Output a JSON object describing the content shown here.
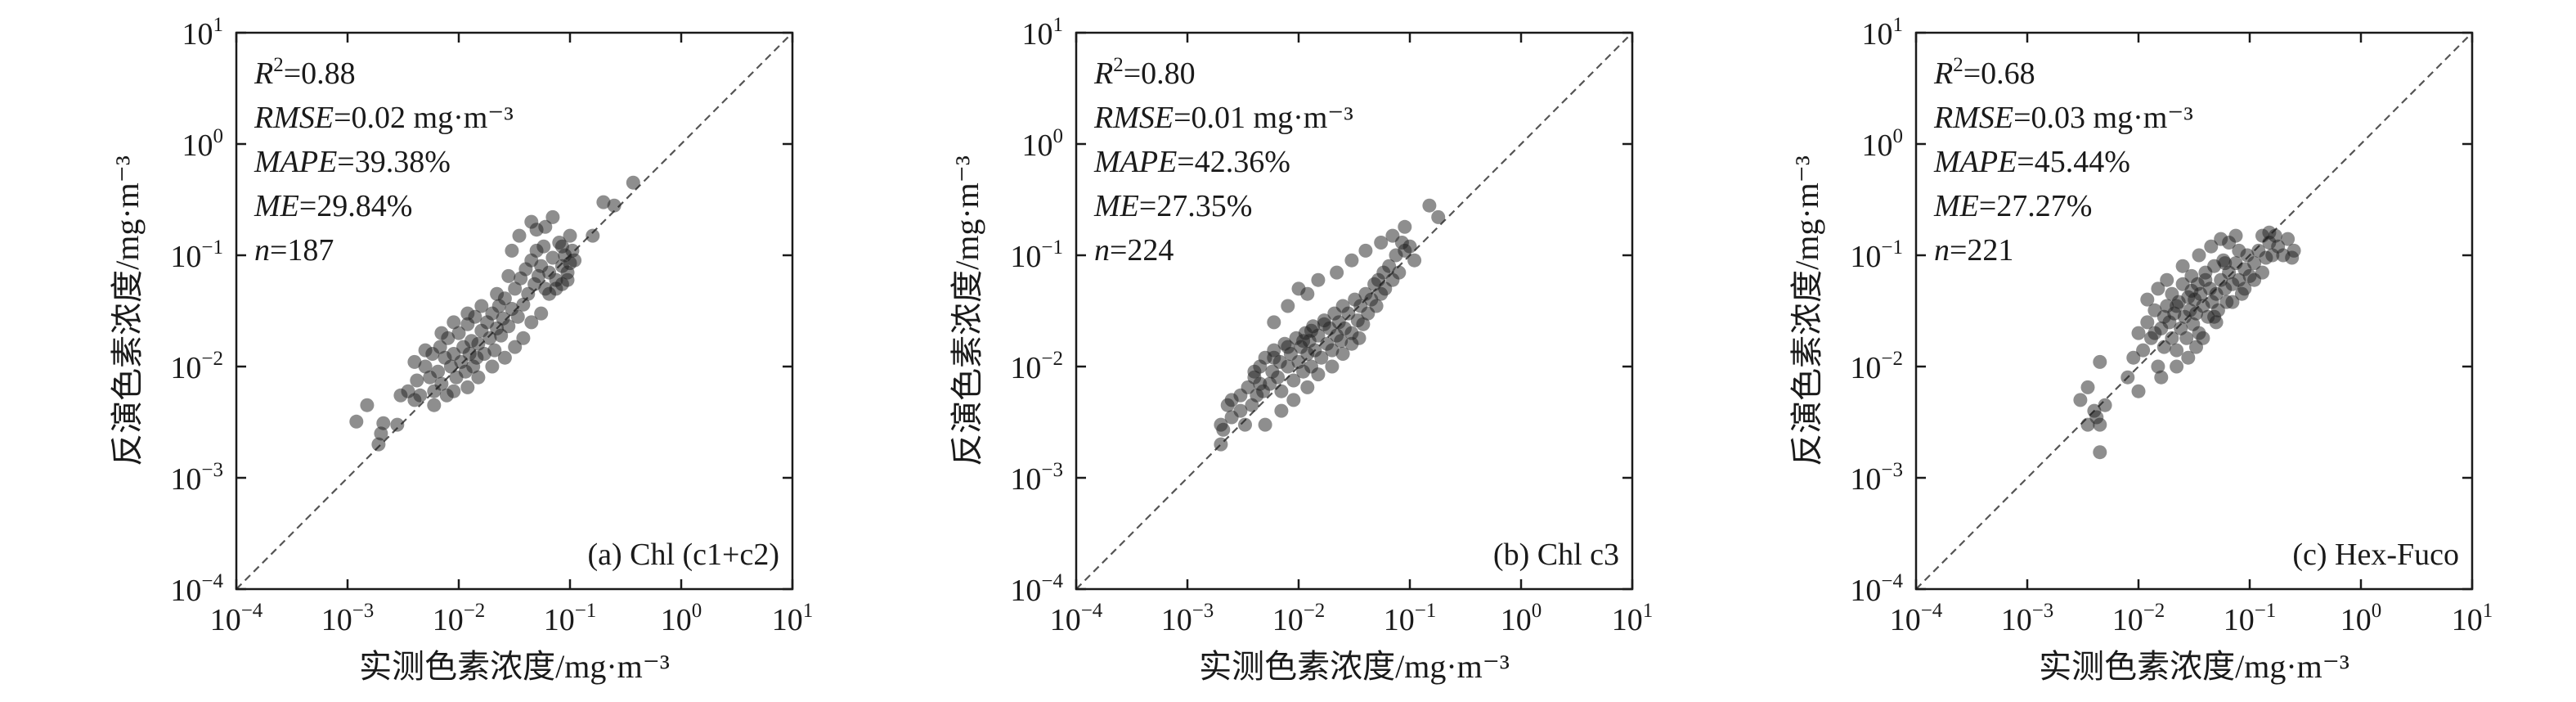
{
  "chart_data": [
    {
      "type": "scatter",
      "panel_label": "(a) Chl (c1+c2)",
      "xlabel": "实测色素浓度/mg·m⁻³",
      "ylabel": "反演色素浓度/mg·m⁻³",
      "x_scale": "log",
      "y_scale": "log",
      "xlim": [
        0.0001,
        10
      ],
      "ylim": [
        0.0001,
        10
      ],
      "tick_labels": [
        "10⁻⁴",
        "10⁻³",
        "10⁻²",
        "10⁻¹",
        "10⁰",
        "10¹"
      ],
      "reference_line": "1:1 dashed",
      "stats": {
        "r2_label": "R²",
        "r2": "=0.88",
        "rmse_label": "RMSE",
        "rmse": "=0.02 mg·m⁻³",
        "mape_label": "MAPE",
        "mape": "=39.38%",
        "me_label": "ME",
        "me": "=29.84%",
        "n_label": "n",
        "n": "=187"
      },
      "points": [
        [
          0.0019,
          0.002
        ],
        [
          0.002,
          0.0025
        ],
        [
          0.0021,
          0.0031
        ],
        [
          0.0015,
          0.0045
        ],
        [
          0.0012,
          0.0032
        ],
        [
          0.0028,
          0.003
        ],
        [
          0.003,
          0.0055
        ],
        [
          0.0035,
          0.006
        ],
        [
          0.004,
          0.005
        ],
        [
          0.0042,
          0.0075
        ],
        [
          0.0045,
          0.0055
        ],
        [
          0.005,
          0.01
        ],
        [
          0.0055,
          0.008
        ],
        [
          0.0058,
          0.013
        ],
        [
          0.006,
          0.006
        ],
        [
          0.0065,
          0.009
        ],
        [
          0.0068,
          0.015
        ],
        [
          0.007,
          0.007
        ],
        [
          0.0075,
          0.012
        ],
        [
          0.0078,
          0.0055
        ],
        [
          0.008,
          0.018
        ],
        [
          0.0085,
          0.01
        ],
        [
          0.009,
          0.013
        ],
        [
          0.0095,
          0.008
        ],
        [
          0.01,
          0.02
        ],
        [
          0.0105,
          0.011
        ],
        [
          0.011,
          0.015
        ],
        [
          0.0115,
          0.009
        ],
        [
          0.012,
          0.024
        ],
        [
          0.0125,
          0.013
        ],
        [
          0.013,
          0.017
        ],
        [
          0.0135,
          0.01
        ],
        [
          0.014,
          0.028
        ],
        [
          0.0145,
          0.012
        ],
        [
          0.015,
          0.016
        ],
        [
          0.016,
          0.021
        ],
        [
          0.017,
          0.013
        ],
        [
          0.018,
          0.025
        ],
        [
          0.019,
          0.018
        ],
        [
          0.02,
          0.03
        ],
        [
          0.021,
          0.014
        ],
        [
          0.022,
          0.022
        ],
        [
          0.023,
          0.035
        ],
        [
          0.024,
          0.019
        ],
        [
          0.025,
          0.027
        ],
        [
          0.026,
          0.041
        ],
        [
          0.028,
          0.023
        ],
        [
          0.03,
          0.033
        ],
        [
          0.032,
          0.05
        ],
        [
          0.034,
          0.028
        ],
        [
          0.036,
          0.062
        ],
        [
          0.038,
          0.036
        ],
        [
          0.04,
          0.075
        ],
        [
          0.042,
          0.045
        ],
        [
          0.045,
          0.09
        ],
        [
          0.048,
          0.055
        ],
        [
          0.05,
          0.11
        ],
        [
          0.052,
          0.065
        ],
        [
          0.055,
          0.08
        ],
        [
          0.058,
          0.12
        ],
        [
          0.06,
          0.05
        ],
        [
          0.065,
          0.07
        ],
        [
          0.07,
          0.095
        ],
        [
          0.075,
          0.06
        ],
        [
          0.08,
          0.13
        ],
        [
          0.085,
          0.08
        ],
        [
          0.09,
          0.1
        ],
        [
          0.095,
          0.07
        ],
        [
          0.1,
          0.15
        ],
        [
          0.105,
          0.11
        ],
        [
          0.11,
          0.09
        ],
        [
          0.038,
          0.018
        ],
        [
          0.032,
          0.015
        ],
        [
          0.026,
          0.012
        ],
        [
          0.02,
          0.01
        ],
        [
          0.015,
          0.008
        ],
        [
          0.012,
          0.0065
        ],
        [
          0.009,
          0.006
        ],
        [
          0.006,
          0.0045
        ],
        [
          0.045,
          0.025
        ],
        [
          0.055,
          0.03
        ],
        [
          0.065,
          0.045
        ],
        [
          0.075,
          0.05
        ],
        [
          0.085,
          0.055
        ],
        [
          0.095,
          0.06
        ],
        [
          0.1,
          0.085
        ],
        [
          0.028,
          0.065
        ],
        [
          0.022,
          0.045
        ],
        [
          0.016,
          0.035
        ],
        [
          0.012,
          0.03
        ],
        [
          0.009,
          0.025
        ],
        [
          0.007,
          0.02
        ],
        [
          0.005,
          0.014
        ],
        [
          0.004,
          0.011
        ],
        [
          0.035,
          0.15
        ],
        [
          0.045,
          0.2
        ],
        [
          0.03,
          0.11
        ],
        [
          0.05,
          0.17
        ],
        [
          0.2,
          0.3
        ],
        [
          0.25,
          0.28
        ],
        [
          0.37,
          0.45
        ],
        [
          0.06,
          0.18
        ],
        [
          0.07,
          0.22
        ],
        [
          0.16,
          0.15
        ],
        [
          0.085,
          0.12
        ]
      ]
    },
    {
      "type": "scatter",
      "panel_label": "(b) Chl c3",
      "xlabel": "实测色素浓度/mg·m⁻³",
      "ylabel": "反演色素浓度/mg·m⁻³",
      "x_scale": "log",
      "y_scale": "log",
      "xlim": [
        0.0001,
        10
      ],
      "ylim": [
        0.0001,
        10
      ],
      "tick_labels": [
        "10⁻⁴",
        "10⁻³",
        "10⁻²",
        "10⁻¹",
        "10⁰",
        "10¹"
      ],
      "reference_line": "1:1 dashed",
      "stats": {
        "r2_label": "R²",
        "r2": "=0.80",
        "rmse_label": "RMSE",
        "rmse": "=0.01 mg·m⁻³",
        "mape_label": "MAPE",
        "mape": "=42.36%",
        "me_label": "ME",
        "me": "=27.35%",
        "n_label": "n",
        "n": "=224"
      },
      "points": [
        [
          0.002,
          0.002
        ],
        [
          0.0021,
          0.0027
        ],
        [
          0.0023,
          0.0045
        ],
        [
          0.0025,
          0.0035
        ],
        [
          0.003,
          0.0055
        ],
        [
          0.0033,
          0.003
        ],
        [
          0.0035,
          0.0065
        ],
        [
          0.0038,
          0.0045
        ],
        [
          0.004,
          0.008
        ],
        [
          0.0042,
          0.0055
        ],
        [
          0.0045,
          0.01
        ],
        [
          0.0048,
          0.006
        ],
        [
          0.005,
          0.012
        ],
        [
          0.0055,
          0.007
        ],
        [
          0.0058,
          0.009
        ],
        [
          0.006,
          0.014
        ],
        [
          0.0065,
          0.008
        ],
        [
          0.0068,
          0.011
        ],
        [
          0.007,
          0.006
        ],
        [
          0.0075,
          0.016
        ],
        [
          0.008,
          0.01
        ],
        [
          0.0085,
          0.013
        ],
        [
          0.009,
          0.0075
        ],
        [
          0.0095,
          0.018
        ],
        [
          0.01,
          0.011
        ],
        [
          0.0105,
          0.015
        ],
        [
          0.011,
          0.009
        ],
        [
          0.0115,
          0.02
        ],
        [
          0.012,
          0.013
        ],
        [
          0.0125,
          0.017
        ],
        [
          0.013,
          0.01
        ],
        [
          0.0135,
          0.023
        ],
        [
          0.014,
          0.014
        ],
        [
          0.015,
          0.019
        ],
        [
          0.016,
          0.012
        ],
        [
          0.017,
          0.026
        ],
        [
          0.018,
          0.016
        ],
        [
          0.019,
          0.022
        ],
        [
          0.02,
          0.014
        ],
        [
          0.021,
          0.03
        ],
        [
          0.022,
          0.019
        ],
        [
          0.023,
          0.025
        ],
        [
          0.024,
          0.017
        ],
        [
          0.025,
          0.035
        ],
        [
          0.026,
          0.022
        ],
        [
          0.028,
          0.03
        ],
        [
          0.03,
          0.02
        ],
        [
          0.032,
          0.04
        ],
        [
          0.034,
          0.026
        ],
        [
          0.036,
          0.035
        ],
        [
          0.038,
          0.024
        ],
        [
          0.04,
          0.045
        ],
        [
          0.042,
          0.03
        ],
        [
          0.045,
          0.04
        ],
        [
          0.048,
          0.055
        ],
        [
          0.05,
          0.035
        ],
        [
          0.052,
          0.06
        ],
        [
          0.055,
          0.045
        ],
        [
          0.058,
          0.07
        ],
        [
          0.06,
          0.05
        ],
        [
          0.065,
          0.08
        ],
        [
          0.07,
          0.06
        ],
        [
          0.075,
          0.1
        ],
        [
          0.08,
          0.07
        ],
        [
          0.085,
          0.13
        ],
        [
          0.09,
          0.11
        ],
        [
          0.1,
          0.12
        ],
        [
          0.11,
          0.09
        ],
        [
          0.01,
          0.05
        ],
        [
          0.008,
          0.035
        ],
        [
          0.006,
          0.025
        ],
        [
          0.015,
          0.06
        ],
        [
          0.012,
          0.045
        ],
        [
          0.022,
          0.07
        ],
        [
          0.03,
          0.09
        ],
        [
          0.04,
          0.11
        ],
        [
          0.055,
          0.13
        ],
        [
          0.07,
          0.15
        ],
        [
          0.09,
          0.18
        ],
        [
          0.15,
          0.28
        ],
        [
          0.18,
          0.22
        ],
        [
          0.005,
          0.003
        ],
        [
          0.007,
          0.004
        ],
        [
          0.009,
          0.005
        ],
        [
          0.012,
          0.0065
        ],
        [
          0.015,
          0.0085
        ],
        [
          0.02,
          0.01
        ],
        [
          0.025,
          0.013
        ],
        [
          0.03,
          0.016
        ],
        [
          0.035,
          0.018
        ],
        [
          0.003,
          0.004
        ],
        [
          0.0025,
          0.005
        ],
        [
          0.004,
          0.009
        ],
        [
          0.006,
          0.012
        ],
        [
          0.008,
          0.015
        ],
        [
          0.011,
          0.017
        ],
        [
          0.013,
          0.021
        ],
        [
          0.017,
          0.024
        ],
        [
          0.002,
          0.003
        ],
        [
          0.0045,
          0.007
        ]
      ]
    },
    {
      "type": "scatter",
      "panel_label": "(c) Hex-Fuco",
      "xlabel": "实测色素浓度/mg·m⁻³",
      "ylabel": "反演色素浓度/mg·m⁻³",
      "x_scale": "log",
      "y_scale": "log",
      "xlim": [
        0.0001,
        10
      ],
      "ylim": [
        0.0001,
        10
      ],
      "tick_labels": [
        "10⁻⁴",
        "10⁻³",
        "10⁻²",
        "10⁻¹",
        "10⁰",
        "10¹"
      ],
      "reference_line": "1:1 dashed",
      "stats": {
        "r2_label": "R²",
        "r2": "=0.68",
        "rmse_label": "RMSE",
        "rmse": "=0.03 mg·m⁻³",
        "mape_label": "MAPE",
        "mape": "=45.44%",
        "me_label": "ME",
        "me": "=27.27%",
        "n_label": "n",
        "n": "=221"
      },
      "points": [
        [
          0.003,
          0.005
        ],
        [
          0.0035,
          0.0065
        ],
        [
          0.0035,
          0.003
        ],
        [
          0.004,
          0.004
        ],
        [
          0.0042,
          0.0035
        ],
        [
          0.0045,
          0.003
        ],
        [
          0.0045,
          0.0017
        ],
        [
          0.0045,
          0.011
        ],
        [
          0.005,
          0.0045
        ],
        [
          0.008,
          0.008
        ],
        [
          0.009,
          0.012
        ],
        [
          0.01,
          0.02
        ],
        [
          0.01,
          0.006
        ],
        [
          0.011,
          0.014
        ],
        [
          0.012,
          0.025
        ],
        [
          0.013,
          0.018
        ],
        [
          0.014,
          0.032
        ],
        [
          0.015,
          0.01
        ],
        [
          0.016,
          0.022
        ],
        [
          0.017,
          0.015
        ],
        [
          0.018,
          0.035
        ],
        [
          0.019,
          0.025
        ],
        [
          0.02,
          0.018
        ],
        [
          0.02,
          0.045
        ],
        [
          0.021,
          0.03
        ],
        [
          0.022,
          0.014
        ],
        [
          0.023,
          0.038
        ],
        [
          0.024,
          0.022
        ],
        [
          0.025,
          0.055
        ],
        [
          0.026,
          0.028
        ],
        [
          0.027,
          0.018
        ],
        [
          0.028,
          0.042
        ],
        [
          0.029,
          0.032
        ],
        [
          0.03,
          0.065
        ],
        [
          0.031,
          0.024
        ],
        [
          0.032,
          0.04
        ],
        [
          0.033,
          0.03
        ],
        [
          0.034,
          0.055
        ],
        [
          0.035,
          0.02
        ],
        [
          0.036,
          0.045
        ],
        [
          0.038,
          0.035
        ],
        [
          0.04,
          0.07
        ],
        [
          0.042,
          0.028
        ],
        [
          0.044,
          0.05
        ],
        [
          0.046,
          0.038
        ],
        [
          0.048,
          0.08
        ],
        [
          0.05,
          0.045
        ],
        [
          0.052,
          0.032
        ],
        [
          0.055,
          0.06
        ],
        [
          0.058,
          0.09
        ],
        [
          0.06,
          0.05
        ],
        [
          0.062,
          0.038
        ],
        [
          0.065,
          0.07
        ],
        [
          0.07,
          0.055
        ],
        [
          0.075,
          0.085
        ],
        [
          0.08,
          0.06
        ],
        [
          0.085,
          0.045
        ],
        [
          0.09,
          0.075
        ],
        [
          0.095,
          0.1
        ],
        [
          0.1,
          0.065
        ],
        [
          0.11,
          0.085
        ],
        [
          0.12,
          0.11
        ],
        [
          0.13,
          0.07
        ],
        [
          0.14,
          0.095
        ],
        [
          0.15,
          0.13
        ],
        [
          0.16,
          0.1
        ],
        [
          0.18,
          0.12
        ],
        [
          0.2,
          0.1
        ],
        [
          0.22,
          0.14
        ],
        [
          0.25,
          0.11
        ],
        [
          0.15,
          0.16
        ],
        [
          0.035,
          0.1
        ],
        [
          0.025,
          0.08
        ],
        [
          0.045,
          0.12
        ],
        [
          0.065,
          0.13
        ],
        [
          0.018,
          0.06
        ],
        [
          0.015,
          0.05
        ],
        [
          0.012,
          0.04
        ],
        [
          0.055,
          0.14
        ],
        [
          0.075,
          0.15
        ],
        [
          0.028,
          0.012
        ],
        [
          0.038,
          0.018
        ],
        [
          0.05,
          0.025
        ],
        [
          0.07,
          0.038
        ],
        [
          0.09,
          0.05
        ],
        [
          0.11,
          0.06
        ],
        [
          0.022,
          0.01
        ],
        [
          0.016,
          0.008
        ],
        [
          0.06,
          0.085
        ],
        [
          0.08,
          0.11
        ],
        [
          0.04,
          0.06
        ],
        [
          0.03,
          0.048
        ],
        [
          0.022,
          0.035
        ],
        [
          0.017,
          0.028
        ],
        [
          0.014,
          0.02
        ],
        [
          0.13,
          0.15
        ],
        [
          0.17,
          0.15
        ],
        [
          0.24,
          0.095
        ],
        [
          0.033,
          0.015
        ],
        [
          0.048,
          0.028
        ]
      ]
    }
  ]
}
